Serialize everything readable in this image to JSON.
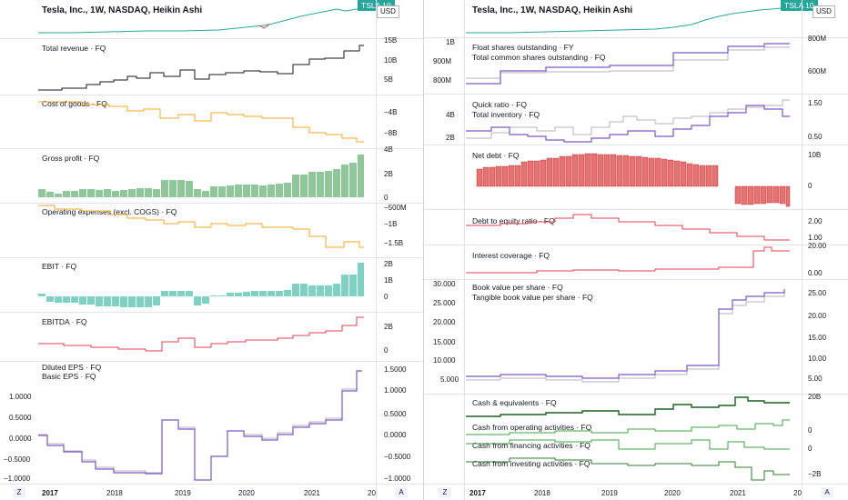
{
  "left": {
    "title": "Tesla, Inc., 1W, NASDAQ, Heikin Ashi",
    "symbol": "TSLA",
    "symbol_price": "10",
    "currency": "USD",
    "panes": [
      {
        "labels": [
          "Total revenue · FQ"
        ],
        "axis": [
          "15B",
          "10B",
          "5B"
        ]
      },
      {
        "labels": [
          "Cost of goods · FQ"
        ],
        "axis": [
          "−4B",
          "−8B"
        ]
      },
      {
        "labels": [
          "Gross profit · FQ"
        ],
        "axis": [
          "4B",
          "2B",
          "0"
        ]
      },
      {
        "labels": [
          "Operating expenses (excl. COGS) · FQ"
        ],
        "axis": [
          "−500M",
          "−1B",
          "−1.5B"
        ]
      },
      {
        "labels": [
          "EBIT · FQ"
        ],
        "axis": [
          "2B",
          "1B",
          "0"
        ]
      },
      {
        "labels": [
          "EBITDA · FQ"
        ],
        "axis": [
          "2B",
          "0"
        ]
      },
      {
        "labels": [
          "Diluted EPS · FQ",
          "Basic EPS · FQ"
        ],
        "axis": [
          "1.5000",
          "1.0000",
          "0.5000",
          "0.0000",
          "−0.5000",
          "−1.0000"
        ],
        "left_axis": [
          "1.0000",
          "0.5000",
          "0.0000",
          "−0.5000",
          "−1.0000"
        ]
      }
    ],
    "time_axis": [
      "2017",
      "2018",
      "2019",
      "2020",
      "2021",
      "20"
    ],
    "z_button": "Z",
    "a_button": "A"
  },
  "right": {
    "title": "Tesla, Inc., 1W, NASDAQ, Heikin Ashi",
    "symbol": "TSLA",
    "symbol_price": "10",
    "currency": "USD",
    "panes": [
      {
        "labels": [
          "Float shares outstanding · FY",
          "Total common shares outstanding · FQ"
        ],
        "axis": [
          "800M",
          "600M"
        ],
        "left_axis": [
          "1B",
          "900M",
          "800M"
        ]
      },
      {
        "labels": [
          "Quick ratio · FQ",
          "Total inventory · FQ"
        ],
        "axis": [
          "1.50",
          "0.50"
        ],
        "left_axis": [
          "4B",
          "2B"
        ]
      },
      {
        "labels": [
          "Net debt · FQ"
        ],
        "axis": [
          "10B",
          "0"
        ]
      },
      {
        "labels": [
          "Debt to equity ratio · FQ"
        ],
        "axis": [
          "2.00",
          "1.00"
        ]
      },
      {
        "labels": [
          "Interest coverage · FQ"
        ],
        "axis": [
          "20.00",
          "0.00"
        ]
      },
      {
        "labels": [
          "Book value per share · FQ",
          "Tangible book value per share · FQ"
        ],
        "axis": [
          "25.00",
          "20.00",
          "15.00",
          "10.00",
          "5.00"
        ],
        "left_axis": [
          "30.000",
          "25.000",
          "20.000",
          "15.000",
          "10.000",
          "5.000"
        ]
      },
      {
        "labels": [
          "Cash & equivalents · FQ"
        ],
        "axis": [
          "20B"
        ]
      },
      {
        "labels": [
          "Cash from operating activities · FQ"
        ],
        "axis": [
          "0"
        ]
      },
      {
        "labels": [
          "Cash from financing activities · FQ"
        ],
        "axis": [
          "0"
        ]
      },
      {
        "labels": [
          "Cash from investing activities · FQ"
        ],
        "axis": [
          "−2B"
        ]
      }
    ],
    "time_axis": [
      "2017",
      "2018",
      "2019",
      "2020",
      "2021",
      "20"
    ],
    "z_button": "Z",
    "a_button": "A"
  },
  "colors": {
    "black": "#131722",
    "orange": "#f5a623",
    "green_fill": "#8fc79a",
    "teal_fill": "#7fd1c3",
    "red": "#e04050",
    "purple": "#7e57c2",
    "grey": "#b2b5be",
    "dark_green": "#1b5e20",
    "green": "#43a047",
    "debt_fill": "#e57373",
    "badge": "#26a69a"
  }
}
